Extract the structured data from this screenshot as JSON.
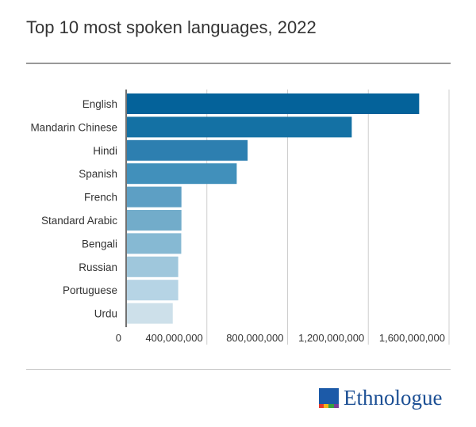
{
  "header": {
    "title": "Top 10 most spoken languages, 2022"
  },
  "chart_data": {
    "type": "bar",
    "orientation": "horizontal",
    "title": "Top 10 most spoken languages, 2022",
    "xlabel": "",
    "ylabel": "",
    "categories": [
      "English",
      "Mandarin Chinese",
      "Hindi",
      "Spanish",
      "French",
      "Standard Arabic",
      "Bengali",
      "Russian",
      "Portuguese",
      "Urdu"
    ],
    "values": [
      1452000000,
      1118000000,
      602000000,
      548000000,
      274000000,
      274000000,
      273000000,
      258000000,
      258000000,
      231000000
    ],
    "xlim": [
      0,
      1600000000
    ],
    "x_ticks": [
      0,
      400000000,
      800000000,
      1200000000,
      1600000000
    ],
    "x_tick_labels": [
      "0",
      "400,000,000",
      "800,000,000",
      "1,200,000,000",
      "1,600,000,000"
    ],
    "grid": true,
    "legend": "none",
    "bar_colors": [
      "#04629a",
      "#1471a4",
      "#2d7fb0",
      "#4190bb",
      "#5d9fc4",
      "#72acca",
      "#86b9d3",
      "#9fc7dc",
      "#b6d4e5",
      "#cde0ea"
    ]
  },
  "footer": {
    "brand": "Ethnologue",
    "brand_color": "#1c4f94",
    "logo_icon": "ethnologue-logo-icon"
  }
}
